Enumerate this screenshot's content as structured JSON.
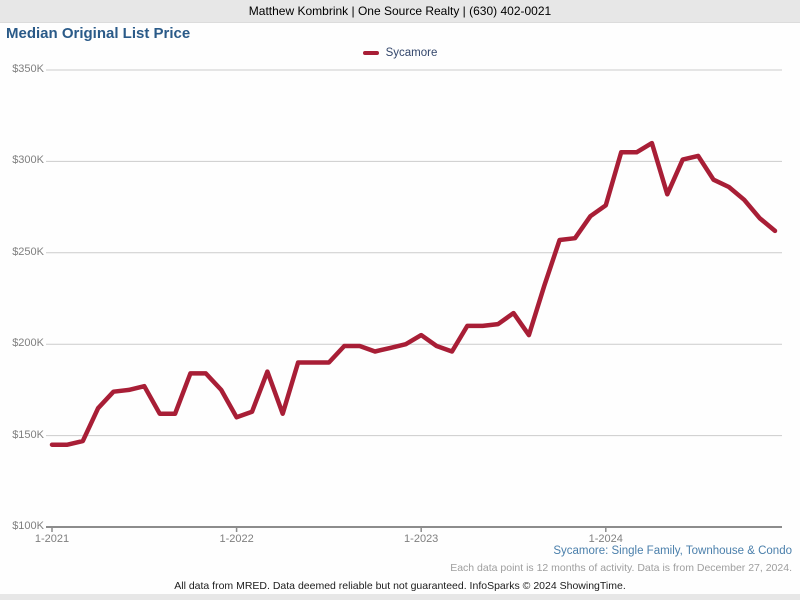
{
  "header": {
    "agent_info": "Matthew Kombrink | One Source Realty | (630) 402-0021"
  },
  "title": "Median Original List Price",
  "legend": {
    "series_label": "Sycamore",
    "series_color": "#a81e36"
  },
  "chart_data": {
    "type": "line",
    "title": "Median Original List Price",
    "unit": "USD thousands",
    "legend_position": "top-center",
    "grid": "horizontal-only",
    "categories": [
      "1-2021",
      "2-2021",
      "3-2021",
      "4-2021",
      "5-2021",
      "6-2021",
      "7-2021",
      "8-2021",
      "9-2021",
      "10-2021",
      "11-2021",
      "12-2021",
      "1-2022",
      "2-2022",
      "3-2022",
      "4-2022",
      "5-2022",
      "6-2022",
      "7-2022",
      "8-2022",
      "9-2022",
      "10-2022",
      "11-2022",
      "12-2022",
      "1-2023",
      "2-2023",
      "3-2023",
      "4-2023",
      "5-2023",
      "6-2023",
      "7-2023",
      "8-2023",
      "9-2023",
      "10-2023",
      "11-2023",
      "12-2023",
      "1-2024",
      "2-2024",
      "3-2024",
      "4-2024",
      "5-2024",
      "6-2024",
      "7-2024",
      "8-2024",
      "9-2024",
      "10-2024",
      "11-2024",
      "12-2024"
    ],
    "series": [
      {
        "name": "Sycamore",
        "color": "#a81e36",
        "values_usd_k": [
          145,
          145,
          147,
          165,
          174,
          175,
          177,
          162,
          162,
          184,
          184,
          175,
          160,
          163,
          185,
          162,
          190,
          190,
          190,
          199,
          199,
          196,
          198,
          200,
          205,
          199,
          196,
          210,
          210,
          211,
          217,
          205,
          232,
          257,
          258,
          270,
          276,
          305,
          305,
          310,
          282,
          301,
          303,
          290,
          286,
          279,
          269,
          262
        ]
      }
    ],
    "ylim_k": [
      100,
      350
    ],
    "ytick_values_k": [
      350,
      300,
      250,
      200,
      150,
      100
    ],
    "ytick_labels": [
      "$350K",
      "$300K",
      "$250K",
      "$200K",
      "$150K",
      "$100K"
    ],
    "xtick_labels": [
      "1-2021",
      "1-2022",
      "1-2023",
      "1-2024"
    ],
    "xtick_month_indices": [
      0,
      12,
      24,
      36
    ]
  },
  "footnotes": {
    "series_description": "Sycamore: Single Family, Townhouse & Condo",
    "data_note": "Each data point is 12 months of activity. Data is from December 27, 2024."
  },
  "footer": {
    "disclaimer": "All data from MRED. Data deemed reliable but not guaranteed. InfoSparks © 2024 ShowingTime."
  }
}
